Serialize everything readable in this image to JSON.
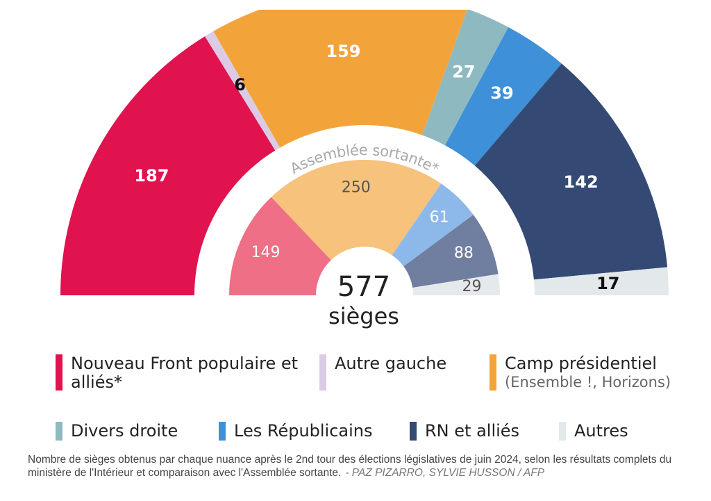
{
  "chart_data": {
    "type": "hemicycle",
    "categories": [
      null,
      "Assemblée sortante*"
    ],
    "center_label": "577",
    "center_sublabel": "sièges",
    "series": [
      {
        "name": "Nouveau Front populaire et alliés*",
        "color": "#e0134f",
        "inner_color": "#ee6f86",
        "values": [
          187,
          149
        ]
      },
      {
        "name": "Autre gauche",
        "color": "#dccbe4",
        "inner_color": "#dccbe4",
        "values": [
          6,
          null
        ]
      },
      {
        "name": "Camp présidentiel",
        "note": "(Ensemble !, Horizons)",
        "color": "#f2a43b",
        "inner_color": "#f6c27c",
        "values": [
          159,
          250
        ]
      },
      {
        "name": "Divers droite",
        "color": "#8fb9c1",
        "inner_color": "#8fb9c1",
        "values": [
          27,
          null
        ]
      },
      {
        "name": "Les Républicains",
        "color": "#3e90d8",
        "inner_color": "#8db8ea",
        "values": [
          39,
          61
        ]
      },
      {
        "name": "RN et alliés",
        "color": "#344a74",
        "inner_color": "#707e9f",
        "values": [
          142,
          88
        ]
      },
      {
        "name": "Autres",
        "color": "#e3e8eb",
        "inner_color": "#e6e9ec",
        "values": [
          17,
          29
        ]
      }
    ]
  },
  "caption": {
    "text": "Nombre de sièges obtenus par chaque nuance après le 2nd tour des élections législatives de juin 2024, selon les résultats complets du ministère de l'Intérieur et comparaison avec l'Assemblée sortante.",
    "credit": "- PAZ PIZARRO, SYLVIE HUSSON / AFP"
  }
}
